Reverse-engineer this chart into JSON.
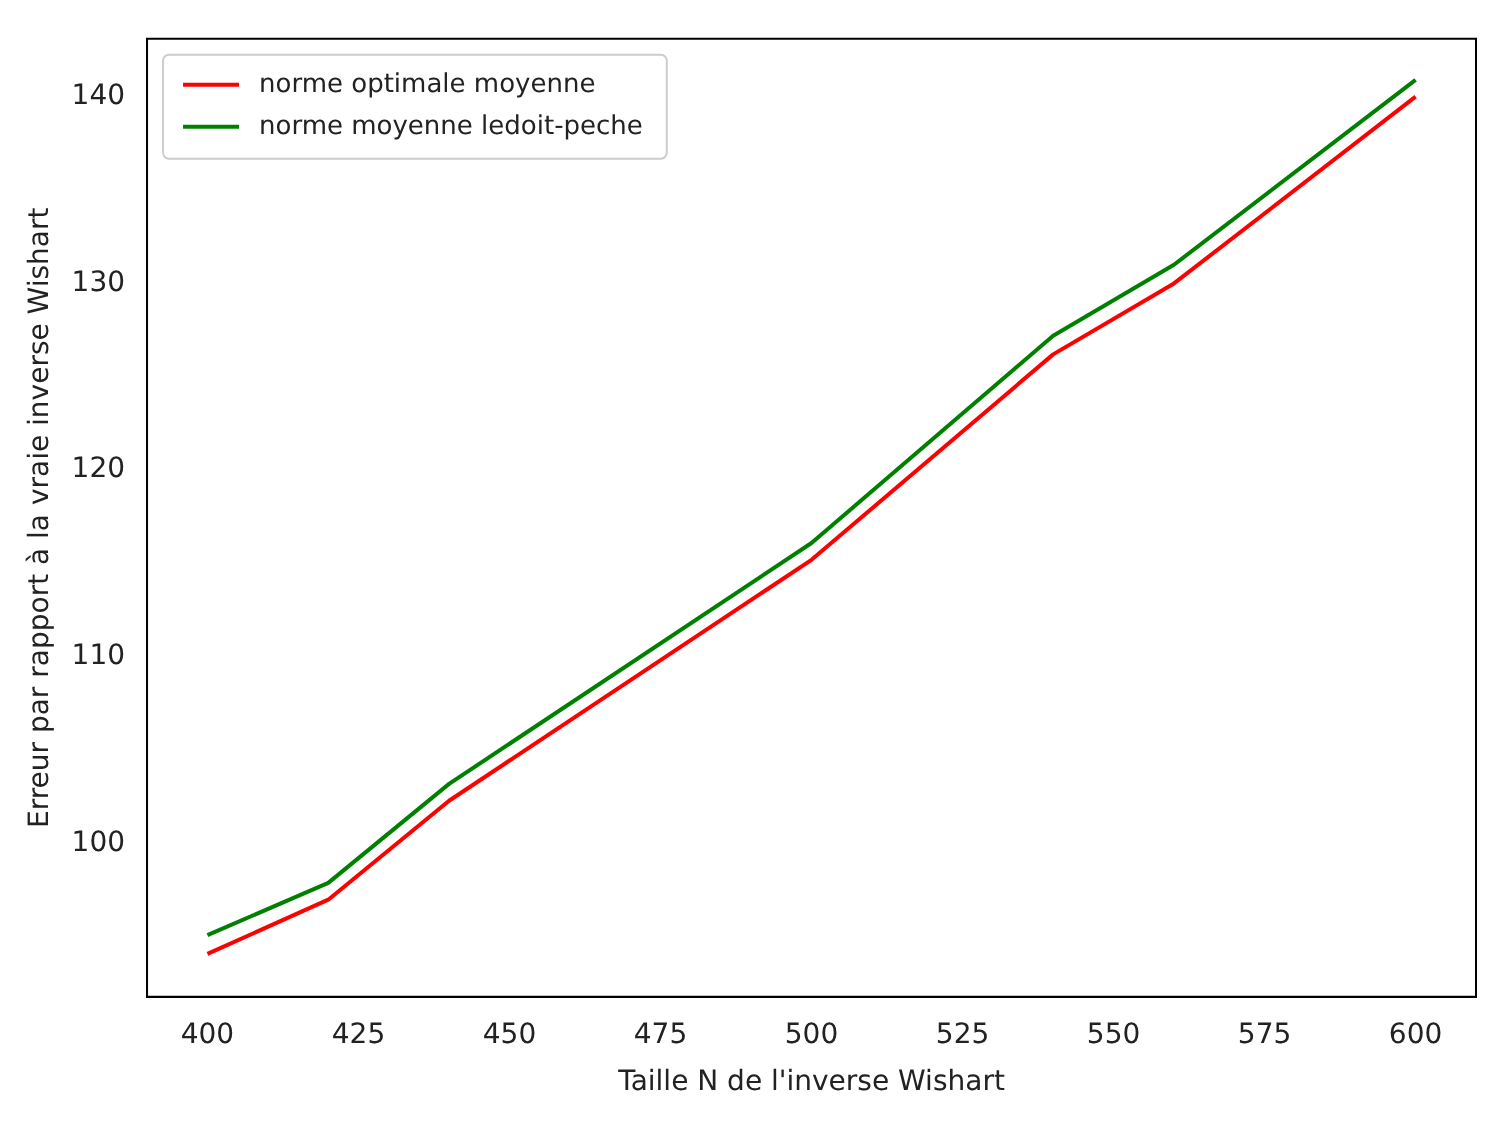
{
  "chart_data": {
    "type": "line",
    "xlabel": "Taille N de l'inverse Wishart",
    "ylabel": "Erreur par rapport à la vraie inverse Wishart",
    "x": [
      400,
      420,
      440,
      500,
      540,
      560,
      600
    ],
    "series": [
      {
        "name": "norme optimale moyenne",
        "color": "#ff0000",
        "values": [
          94.1,
          97.0,
          102.3,
          115.2,
          126.2,
          130.0,
          140.0
        ]
      },
      {
        "name": "norme moyenne ledoit-peche",
        "color": "#008000",
        "values": [
          95.1,
          97.9,
          103.2,
          116.1,
          127.2,
          131.0,
          140.9
        ]
      }
    ],
    "xlim": [
      390,
      610
    ],
    "xticks": [
      400,
      425,
      450,
      475,
      500,
      525,
      550,
      575,
      600
    ],
    "ylim": [
      91.8,
      143.1
    ],
    "yticks": [
      100,
      110,
      120,
      130,
      140
    ],
    "grid": false,
    "legend": "top left",
    "marker": "none",
    "line_style": "solid"
  }
}
